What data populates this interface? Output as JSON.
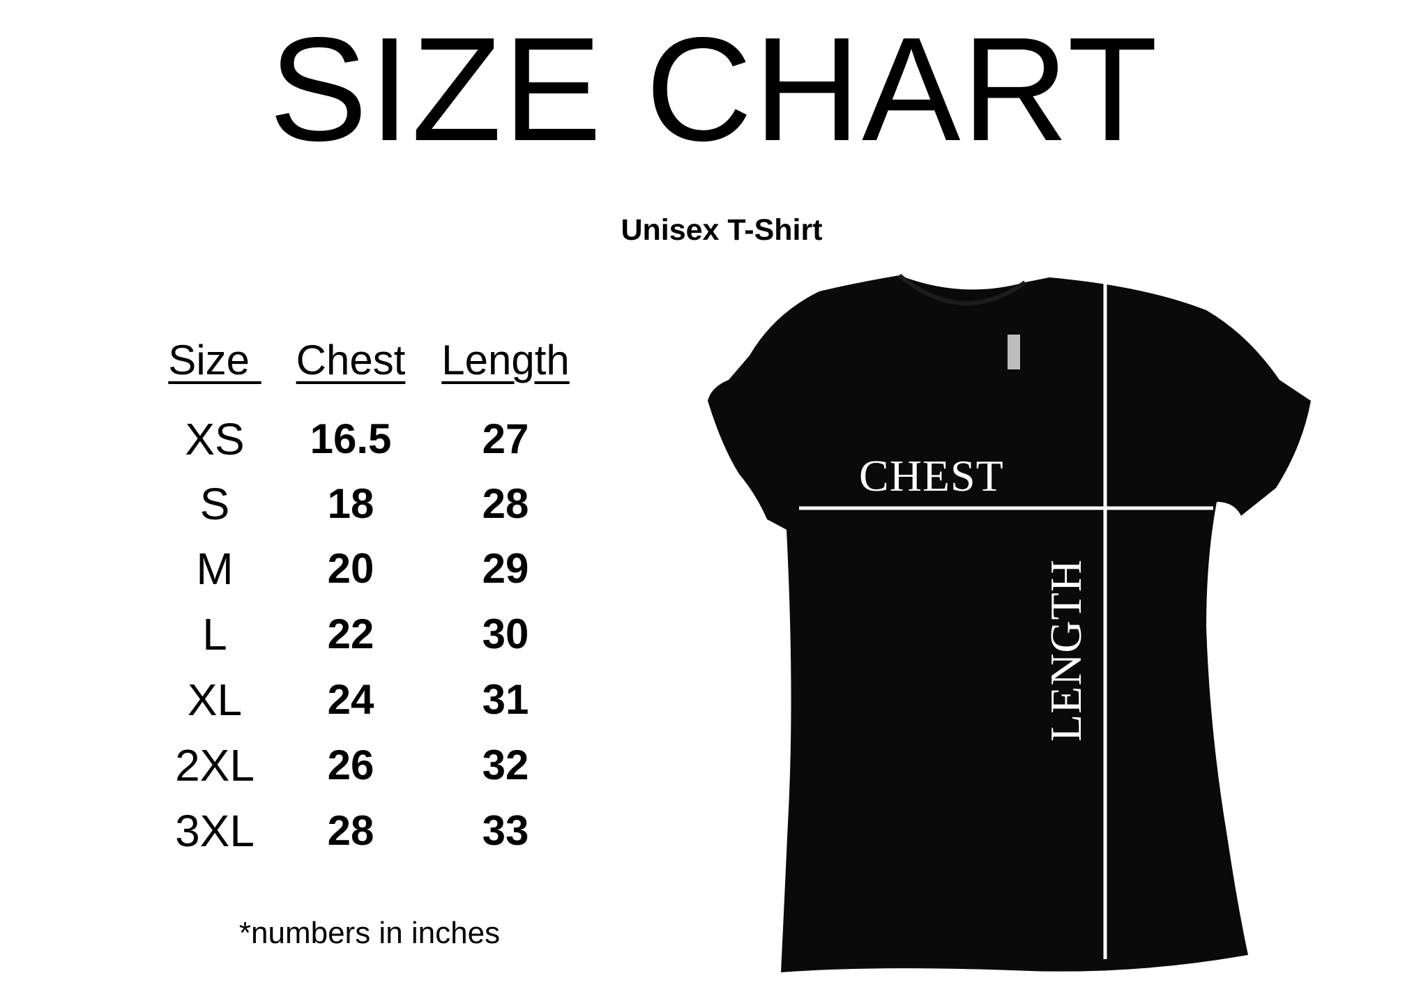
{
  "title": "SIZE CHART",
  "subtitle": "Unisex T-Shirt",
  "table": {
    "headers": [
      "Size",
      "Chest",
      "Length"
    ],
    "rows": [
      [
        "XS",
        "16.5",
        "27"
      ],
      [
        "S",
        "18",
        "28"
      ],
      [
        "M",
        "20",
        "29"
      ],
      [
        "L",
        "22",
        "30"
      ],
      [
        "XL",
        "24",
        "31"
      ],
      [
        "2XL",
        "26",
        "32"
      ],
      [
        "3XL",
        "28",
        "33"
      ]
    ]
  },
  "footnote": "*numbers in inches",
  "diagram": {
    "chest_label": "CHEST",
    "length_label": "LENGTH",
    "shirt_color": "#0a0a0a",
    "line_color": "#ffffff"
  }
}
